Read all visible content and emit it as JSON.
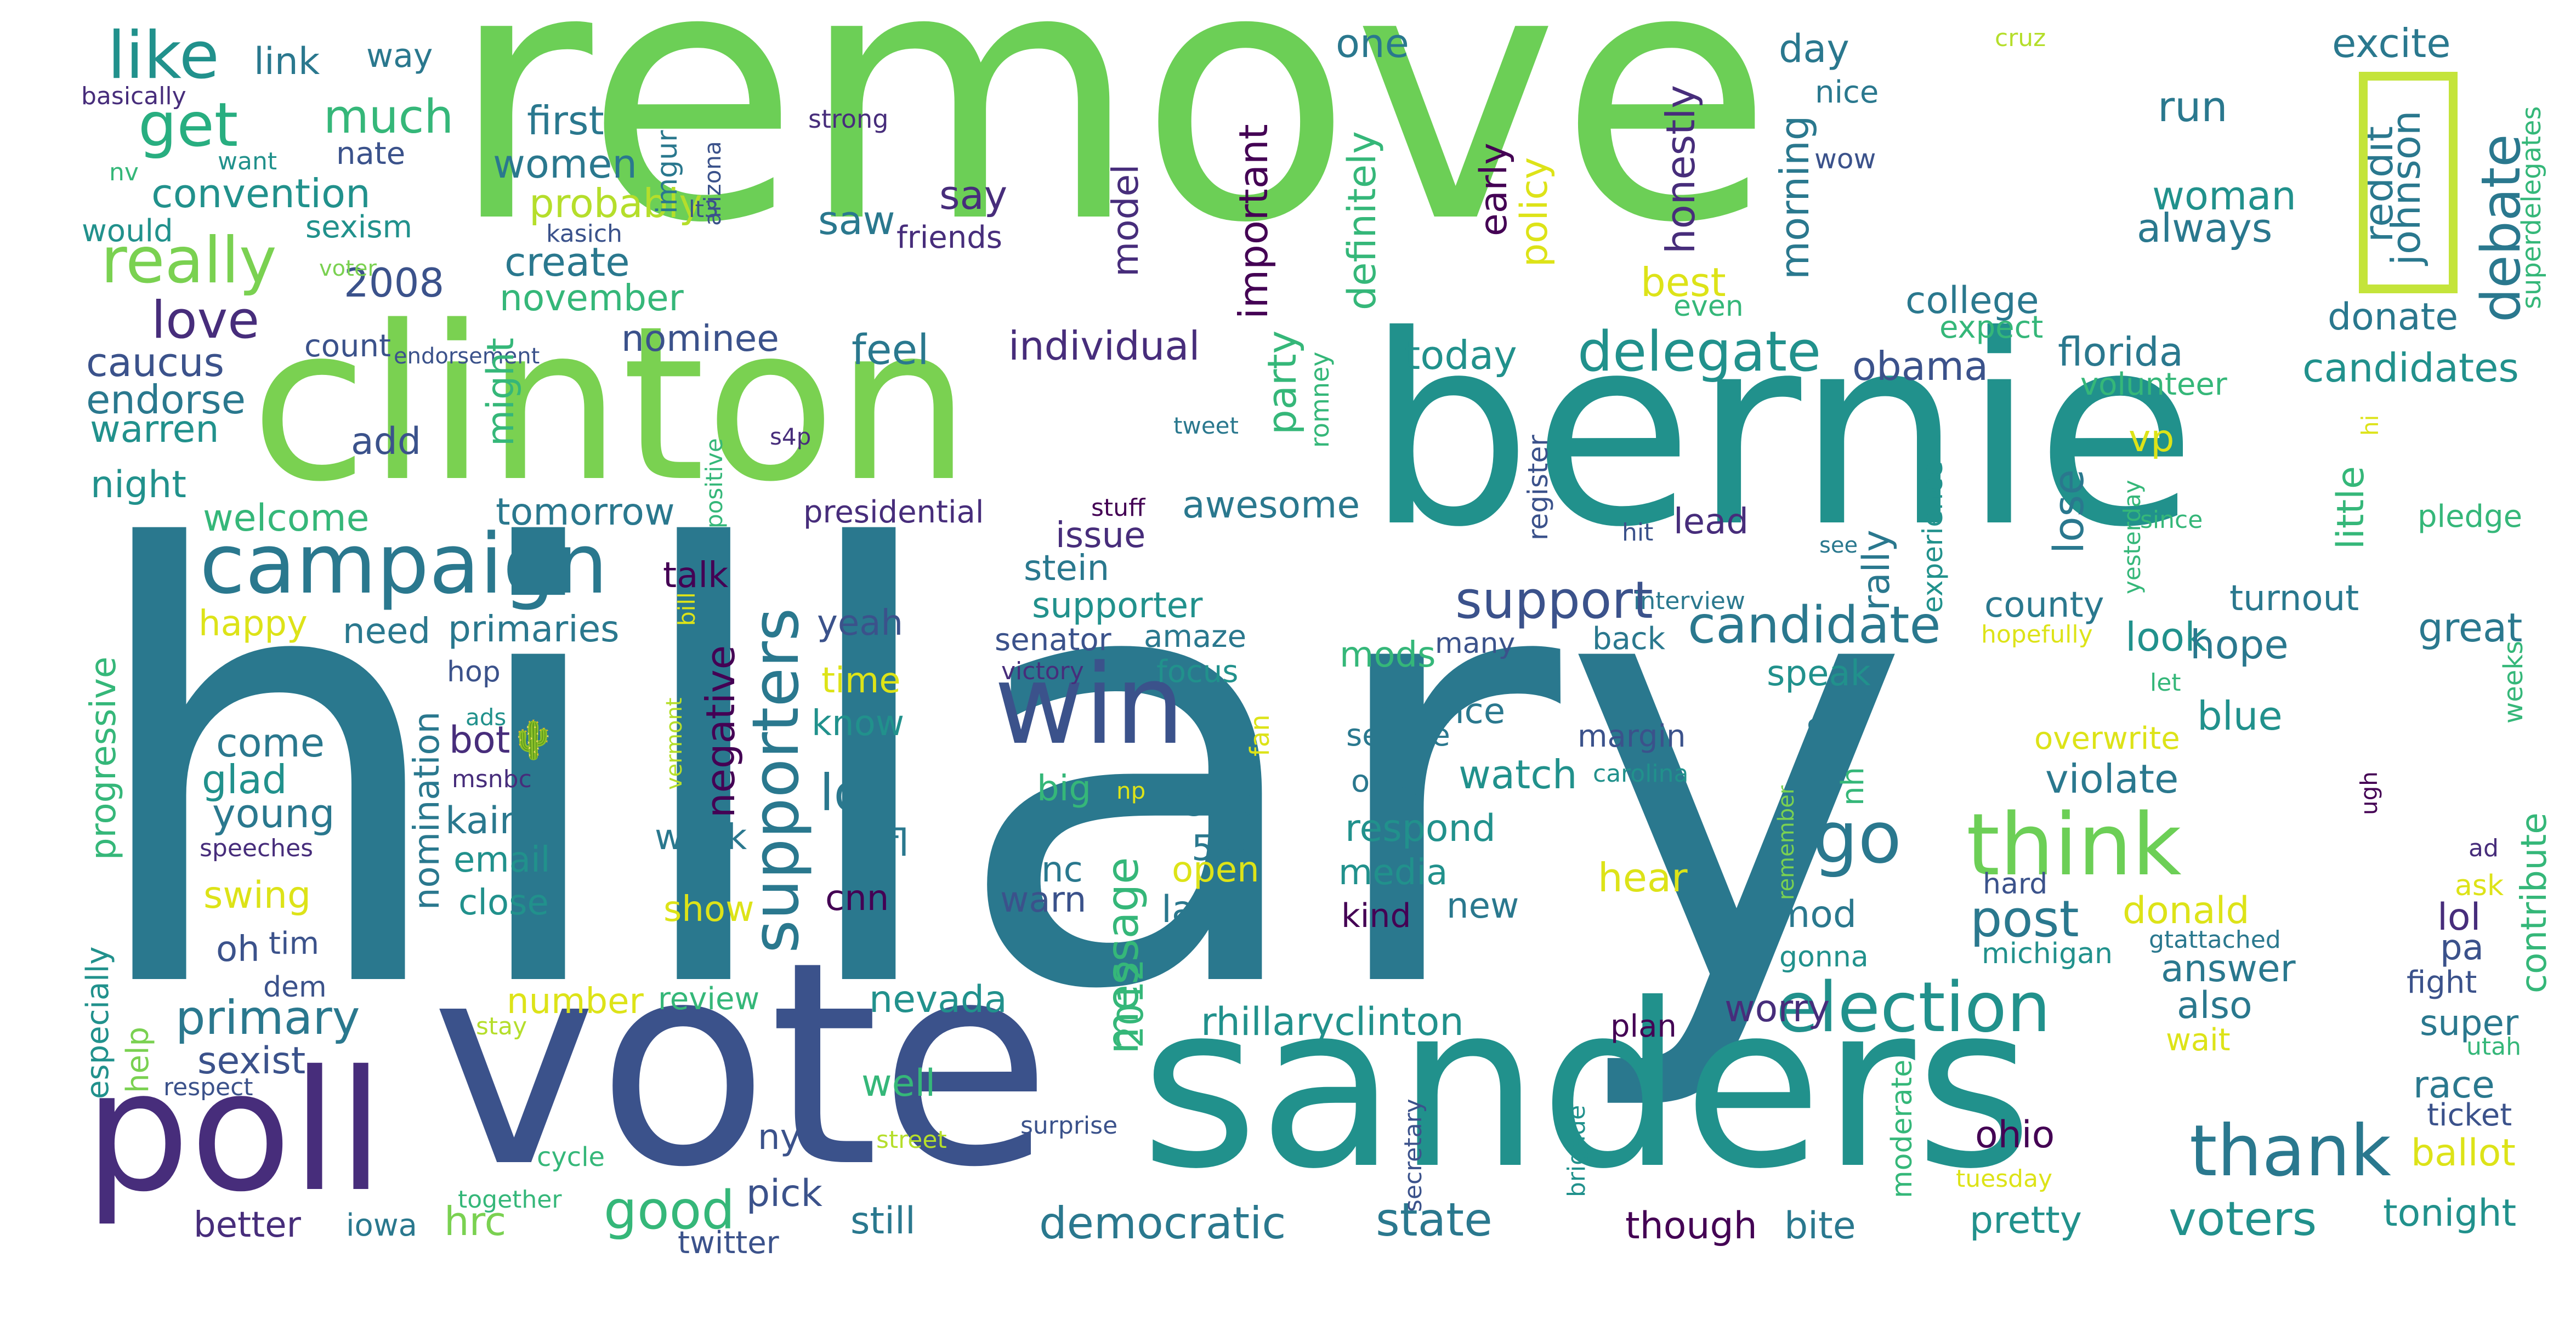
{
  "palette": {
    "light_green": "#6ccf56",
    "teal": "#2a788e",
    "sea": "#21918c",
    "indigo": "#3b528b",
    "purple": "#440154",
    "plum": "#472d7b",
    "green": "#35b779",
    "yellow_green": "#b5de2b",
    "yellow": "#dde318",
    "background": "#ffffff"
  },
  "words": [
    {
      "text": "remove",
      "color": "#6ccf56"
    },
    {
      "text": "hillary",
      "color": "#2a788e"
    },
    {
      "text": "bernie",
      "color": "#21918c"
    },
    {
      "text": "clinton",
      "color": "#7ad151"
    },
    {
      "text": "vote",
      "color": "#3b528b"
    },
    {
      "text": "sanders",
      "color": "#21918c"
    },
    {
      "text": "poll",
      "color": "#472d7b"
    },
    {
      "text": "win",
      "color": "#3b528b"
    },
    {
      "text": "campaign",
      "color": "#2a788e"
    },
    {
      "text": "supporters",
      "color": "#2a788e"
    },
    {
      "text": "think",
      "color": "#6ccf56"
    },
    {
      "text": "election",
      "color": "#21918c"
    },
    {
      "text": "thank",
      "color": "#2a788e"
    },
    {
      "text": "really",
      "color": "#7ad151"
    },
    {
      "text": "like",
      "color": "#21918c"
    },
    {
      "text": "get",
      "color": "#28ae80"
    },
    {
      "text": "go",
      "color": "#2a788e"
    },
    {
      "text": "delegate",
      "color": "#21918c"
    },
    {
      "text": "candidate",
      "color": "#2a788e"
    },
    {
      "text": "support",
      "color": "#3b528b"
    },
    {
      "text": "debate",
      "color": "#2a788e"
    },
    {
      "text": "message",
      "color": "#35b779"
    },
    {
      "text": "good",
      "color": "#35b779"
    },
    {
      "text": "love",
      "color": "#472d7b"
    },
    {
      "text": "much",
      "color": "#35b779"
    },
    {
      "text": "primary",
      "color": "#2a788e"
    },
    {
      "text": "voters",
      "color": "#21918c"
    },
    {
      "text": "state",
      "color": "#2a788e"
    },
    {
      "text": "democratic",
      "color": "#2a788e"
    },
    {
      "text": "post",
      "color": "#2a788e"
    },
    {
      "text": "lot",
      "color": "#2a788e"
    },
    {
      "text": "rhillaryclinton",
      "color": "#21918c"
    },
    {
      "text": "johnson",
      "color": "#2a788e"
    },
    {
      "text": "reddit",
      "color": "#2a788e"
    },
    {
      "text": "women",
      "color": "#2a788e"
    },
    {
      "text": "first",
      "color": "#2a788e"
    },
    {
      "text": "convention",
      "color": "#21918c"
    },
    {
      "text": "probably",
      "color": "#b5de2b"
    },
    {
      "text": "create",
      "color": "#2a788e"
    },
    {
      "text": "2008",
      "color": "#3b528b"
    },
    {
      "text": "november",
      "color": "#35b779"
    },
    {
      "text": "nominee",
      "color": "#3b528b"
    },
    {
      "text": "feel",
      "color": "#2a788e"
    },
    {
      "text": "individual",
      "color": "#472d7b"
    },
    {
      "text": "today",
      "color": "#21918c"
    },
    {
      "text": "obama",
      "color": "#3b528b"
    },
    {
      "text": "florida",
      "color": "#2a788e"
    },
    {
      "text": "candidates",
      "color": "#21918c"
    },
    {
      "text": "college",
      "color": "#2a788e"
    },
    {
      "text": "woman",
      "color": "#21918c"
    },
    {
      "text": "always",
      "color": "#2a788e"
    },
    {
      "text": "excite",
      "color": "#2a788e"
    },
    {
      "text": "donate",
      "color": "#2a788e"
    },
    {
      "text": "run",
      "color": "#2a788e"
    },
    {
      "text": "day",
      "color": "#2a788e"
    },
    {
      "text": "nice",
      "color": "#2a788e"
    },
    {
      "text": "wow",
      "color": "#3b528b"
    },
    {
      "text": "one",
      "color": "#2a788e"
    },
    {
      "text": "saw",
      "color": "#2a788e"
    },
    {
      "text": "say",
      "color": "#472d7b"
    },
    {
      "text": "friends",
      "color": "#472d7b"
    },
    {
      "text": "link",
      "color": "#2a788e"
    },
    {
      "text": "way",
      "color": "#2a788e"
    },
    {
      "text": "nate",
      "color": "#3b528b"
    },
    {
      "text": "sexism",
      "color": "#21918c"
    },
    {
      "text": "would",
      "color": "#21918c"
    },
    {
      "text": "basically",
      "color": "#472d7b"
    },
    {
      "text": "want",
      "color": "#21918c"
    },
    {
      "text": "nv",
      "color": "#35b779"
    },
    {
      "text": "imgur",
      "color": "#2a788e"
    },
    {
      "text": "kasich",
      "color": "#3b528b"
    },
    {
      "text": "lt3",
      "color": "#3b528b"
    },
    {
      "text": "arizona",
      "color": "#3b528b"
    },
    {
      "text": "strong",
      "color": "#472d7b"
    },
    {
      "text": "cruz",
      "color": "#b5de2b"
    },
    {
      "text": "superdelegates",
      "color": "#35b779"
    },
    {
      "text": "expect",
      "color": "#35b779"
    },
    {
      "text": "even",
      "color": "#35b779"
    },
    {
      "text": "best",
      "color": "#dde318"
    },
    {
      "text": "policy",
      "color": "#dde318"
    },
    {
      "text": "early",
      "color": "#440154"
    },
    {
      "text": "honestly",
      "color": "#472d7b"
    },
    {
      "text": "morning",
      "color": "#2a788e"
    },
    {
      "text": "important",
      "color": "#440154"
    },
    {
      "text": "model",
      "color": "#472d7b"
    },
    {
      "text": "definitely",
      "color": "#35b779"
    },
    {
      "text": "party",
      "color": "#35b779"
    },
    {
      "text": "caucus",
      "color": "#3b528b"
    },
    {
      "text": "endorse",
      "color": "#2a788e"
    },
    {
      "text": "warren",
      "color": "#21918c"
    },
    {
      "text": "night",
      "color": "#21918c"
    },
    {
      "text": "welcome",
      "color": "#35b779"
    },
    {
      "text": "count",
      "color": "#3b528b"
    },
    {
      "text": "voter",
      "color": "#7ad151"
    },
    {
      "text": "endorsement",
      "color": "#3b528b"
    },
    {
      "text": "add",
      "color": "#3b528b"
    },
    {
      "text": "might",
      "color": "#35b779"
    },
    {
      "text": "positive",
      "color": "#35b779"
    },
    {
      "text": "s4p",
      "color": "#472d7b"
    },
    {
      "text": "tweet",
      "color": "#2a788e"
    },
    {
      "text": "romney",
      "color": "#35b779"
    },
    {
      "text": "register",
      "color": "#3b528b"
    },
    {
      "text": "experience",
      "color": "#21918c"
    },
    {
      "text": "hi",
      "color": "#dde318"
    },
    {
      "text": "volunteer",
      "color": "#35b779"
    },
    {
      "text": "little",
      "color": "#35b779"
    },
    {
      "text": "pledge",
      "color": "#35b779"
    },
    {
      "text": "yesterday",
      "color": "#35b779"
    },
    {
      "text": "since",
      "color": "#35b779"
    },
    {
      "text": "vp",
      "color": "#dde318"
    },
    {
      "text": "lose",
      "color": "#2a788e"
    },
    {
      "text": "rally",
      "color": "#2a788e"
    },
    {
      "text": "lead",
      "color": "#472d7b"
    },
    {
      "text": "hit",
      "color": "#3b528b"
    },
    {
      "text": "see",
      "color": "#2a788e"
    },
    {
      "text": "stuff",
      "color": "#440154"
    },
    {
      "text": "presidential",
      "color": "#472d7b"
    },
    {
      "text": "issue",
      "color": "#472d7b"
    },
    {
      "text": "awesome",
      "color": "#2a788e"
    },
    {
      "text": "tomorrow",
      "color": "#2a788e"
    },
    {
      "text": "stein",
      "color": "#2a788e"
    },
    {
      "text": "talk",
      "color": "#440154"
    },
    {
      "text": "supporter",
      "color": "#21918c"
    },
    {
      "text": "senator",
      "color": "#3b528b"
    },
    {
      "text": "amaze",
      "color": "#2a788e"
    },
    {
      "text": "victory",
      "color": "#472d7b"
    },
    {
      "text": "focus",
      "color": "#21918c"
    },
    {
      "text": "yeah",
      "color": "#3b528b"
    },
    {
      "text": "primaries",
      "color": "#2a788e"
    },
    {
      "text": "need",
      "color": "#2a788e"
    },
    {
      "text": "happy",
      "color": "#dde318"
    },
    {
      "text": "progressive",
      "color": "#35b779"
    },
    {
      "text": "hop",
      "color": "#3b528b"
    },
    {
      "text": "ads",
      "color": "#21918c"
    },
    {
      "text": "bill",
      "color": "#dde318"
    },
    {
      "text": "vermont",
      "color": "#b5de2b"
    },
    {
      "text": "nomination",
      "color": "#2a788e"
    },
    {
      "text": "negative",
      "color": "#440154"
    },
    {
      "text": "time",
      "color": "#dde318"
    },
    {
      "text": "know",
      "color": "#21918c"
    },
    {
      "text": "many",
      "color": "#3b528b"
    },
    {
      "text": "hopefully",
      "color": "#dde318"
    },
    {
      "text": "interview",
      "color": "#2a788e"
    },
    {
      "text": "county",
      "color": "#2a788e"
    },
    {
      "text": "look",
      "color": "#21918c"
    },
    {
      "text": "turnout",
      "color": "#2a788e"
    },
    {
      "text": "hope",
      "color": "#2a788e"
    },
    {
      "text": "great",
      "color": "#2a788e"
    },
    {
      "text": "back",
      "color": "#2a788e"
    },
    {
      "text": "speak",
      "color": "#21918c"
    },
    {
      "text": "mods",
      "color": "#35b779"
    },
    {
      "text": "chance",
      "color": "#2a788e"
    },
    {
      "text": "senate",
      "color": "#2a788e"
    },
    {
      "text": "margin",
      "color": "#3b528b"
    },
    {
      "text": "carolina",
      "color": "#21918c"
    },
    {
      "text": "let",
      "color": "#35b779"
    },
    {
      "text": "overwrite",
      "color": "#dde318"
    },
    {
      "text": "weeks",
      "color": "#35b779"
    },
    {
      "text": "blue",
      "color": "#21918c"
    },
    {
      "text": "violate",
      "color": "#2a788e"
    },
    {
      "text": "come",
      "color": "#2a788e"
    },
    {
      "text": "glad",
      "color": "#21918c"
    },
    {
      "text": "young",
      "color": "#2a788e"
    },
    {
      "text": "speeches",
      "color": "#472d7b"
    },
    {
      "text": "swing",
      "color": "#dde318"
    },
    {
      "text": "bot🌵",
      "color": "#472d7b"
    },
    {
      "text": "msnbc",
      "color": "#472d7b"
    },
    {
      "text": "kaine",
      "color": "#2a788e"
    },
    {
      "text": "email",
      "color": "#21918c"
    },
    {
      "text": "close",
      "color": "#21918c"
    },
    {
      "text": "week",
      "color": "#2a788e"
    },
    {
      "text": "fan",
      "color": "#dde318"
    },
    {
      "text": "big",
      "color": "#35b779"
    },
    {
      "text": "np",
      "color": "#dde318"
    },
    {
      "text": "538",
      "color": "#2a788e"
    },
    {
      "text": "open",
      "color": "#dde318"
    },
    {
      "text": "nc",
      "color": "#2a788e"
    },
    {
      "text": "warn",
      "color": "#3b528b"
    },
    {
      "text": "watch",
      "color": "#21918c"
    },
    {
      "text": "respond",
      "color": "#21918c"
    },
    {
      "text": "omg",
      "color": "#2a788e"
    },
    {
      "text": "media",
      "color": "#21918c"
    },
    {
      "text": "kind",
      "color": "#440154"
    },
    {
      "text": "new",
      "color": "#2a788e"
    },
    {
      "text": "hear",
      "color": "#dde318"
    },
    {
      "text": "seem",
      "color": "#2a788e"
    },
    {
      "text": "nh",
      "color": "#35b779"
    },
    {
      "text": "sub",
      "color": "#2a788e"
    },
    {
      "text": "fl",
      "color": "#2a788e"
    },
    {
      "text": "show",
      "color": "#dde318"
    },
    {
      "text": "cnn",
      "color": "#440154"
    },
    {
      "text": "last",
      "color": "#2a788e"
    },
    {
      "text": "2012",
      "color": "#35b779"
    },
    {
      "text": "mod",
      "color": "#2a788e"
    },
    {
      "text": "hard",
      "color": "#3b528b"
    },
    {
      "text": "remember",
      "color": "#7ad151"
    },
    {
      "text": "gonna",
      "color": "#21918c"
    },
    {
      "text": "michigan",
      "color": "#21918c"
    },
    {
      "text": "gtattached",
      "color": "#2a788e"
    },
    {
      "text": "donald",
      "color": "#dde318"
    },
    {
      "text": "answer",
      "color": "#2a788e"
    },
    {
      "text": "also",
      "color": "#2a788e"
    },
    {
      "text": "wait",
      "color": "#dde318"
    },
    {
      "text": "lol",
      "color": "#472d7b"
    },
    {
      "text": "pa",
      "color": "#3b528b"
    },
    {
      "text": "fight",
      "color": "#3b528b"
    },
    {
      "text": "super",
      "color": "#2a788e"
    },
    {
      "text": "utah",
      "color": "#35b779"
    },
    {
      "text": "ask",
      "color": "#dde318"
    },
    {
      "text": "ad",
      "color": "#472d7b"
    },
    {
      "text": "contribute",
      "color": "#35b779"
    },
    {
      "text": "ugh",
      "color": "#440154"
    },
    {
      "text": "race",
      "color": "#2a788e"
    },
    {
      "text": "ticket",
      "color": "#3b528b"
    },
    {
      "text": "ballot",
      "color": "#dde318"
    },
    {
      "text": "tonight",
      "color": "#21918c"
    },
    {
      "text": "pretty",
      "color": "#21918c"
    },
    {
      "text": "though",
      "color": "#440154"
    },
    {
      "text": "bite",
      "color": "#2a788e"
    },
    {
      "text": "ohio",
      "color": "#440154"
    },
    {
      "text": "tuesday",
      "color": "#dde318"
    },
    {
      "text": "moderate",
      "color": "#35b779"
    },
    {
      "text": "brigade",
      "color": "#21918c"
    },
    {
      "text": "secretary",
      "color": "#3b528b"
    },
    {
      "text": "surprise",
      "color": "#3b528b"
    },
    {
      "text": "plan",
      "color": "#440154"
    },
    {
      "text": "worry",
      "color": "#472d7b"
    },
    {
      "text": "street",
      "color": "#b5de2b"
    },
    {
      "text": "pick",
      "color": "#3b528b"
    },
    {
      "text": "still",
      "color": "#2a788e"
    },
    {
      "text": "well",
      "color": "#35b779"
    },
    {
      "text": "nevada",
      "color": "#21918c"
    },
    {
      "text": "ny",
      "color": "#3b528b"
    },
    {
      "text": "number",
      "color": "#dde318"
    },
    {
      "text": "review",
      "color": "#35b779"
    },
    {
      "text": "sexist",
      "color": "#3b528b"
    },
    {
      "text": "help",
      "color": "#7ad151"
    },
    {
      "text": "respect",
      "color": "#3b528b"
    },
    {
      "text": "stay",
      "color": "#b5de2b"
    },
    {
      "text": "especially",
      "color": "#21918c"
    },
    {
      "text": "oh",
      "color": "#3b528b"
    },
    {
      "text": "tim",
      "color": "#3b528b"
    },
    {
      "text": "dem",
      "color": "#3b528b"
    },
    {
      "text": "hrc",
      "color": "#7ad151"
    },
    {
      "text": "better",
      "color": "#472d7b"
    },
    {
      "text": "iowa",
      "color": "#2a788e"
    },
    {
      "text": "cycle",
      "color": "#35b779"
    },
    {
      "text": "together",
      "color": "#35b779"
    },
    {
      "text": "twitter",
      "color": "#3b528b"
    }
  ]
}
